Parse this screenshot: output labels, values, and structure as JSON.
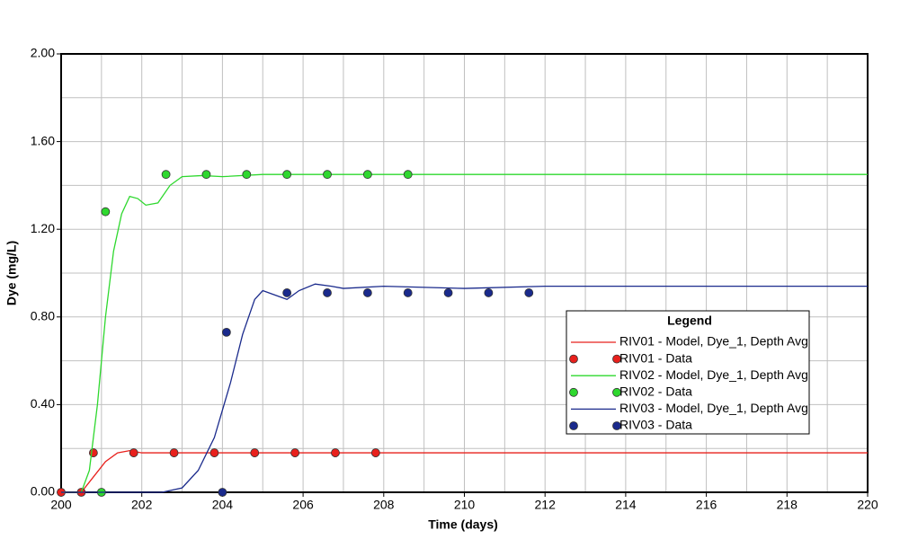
{
  "chart_data": {
    "type": "line",
    "xlabel": "Time (days)",
    "ylabel": "Dye (mg/L)",
    "legend_title": "Legend",
    "legend_loc": "center right",
    "xlim": [
      200,
      220
    ],
    "xticks": [
      200,
      202,
      204,
      206,
      208,
      210,
      212,
      214,
      216,
      218,
      220
    ],
    "x_minor_grid": [
      201,
      203,
      205,
      207,
      209,
      211,
      213,
      215,
      217,
      219
    ],
    "ylim": [
      0,
      2
    ],
    "yticks": [
      {
        "value": 0,
        "label": "0.00"
      },
      {
        "value": 0.4,
        "label": "0.40"
      },
      {
        "value": 0.8,
        "label": "0.80"
      },
      {
        "value": 1.2,
        "label": "1.20"
      },
      {
        "value": 1.6,
        "label": "1.60"
      },
      {
        "value": 2,
        "label": "2.00"
      }
    ],
    "y_minor_grid": [
      0.2,
      0.6,
      1.0,
      1.4,
      1.8
    ],
    "grid": true,
    "series": [
      {
        "name": "RIV01 - Model, Dye_1, Depth Avg",
        "kind": "line",
        "color": "#e8201c",
        "x": [
          200,
          200.5,
          200.8,
          201.1,
          201.4,
          201.7,
          202.0,
          203.0,
          220
        ],
        "values": [
          0,
          0,
          0.07,
          0.14,
          0.18,
          0.19,
          0.18,
          0.18,
          0.18
        ]
      },
      {
        "name": "RIV01 - Data",
        "kind": "marker",
        "color": "#e8201c",
        "x": [
          200.0,
          200.5,
          200.8,
          201.8,
          202.8,
          203.8,
          204.8,
          205.8,
          206.8,
          207.8
        ],
        "values": [
          0,
          0,
          0.18,
          0.18,
          0.18,
          0.18,
          0.18,
          0.18,
          0.18,
          0.18
        ]
      },
      {
        "name": "RIV02 - Model, Dye_1, Depth Avg",
        "kind": "line",
        "color": "#2ed82e",
        "x": [
          200,
          200.5,
          200.7,
          200.9,
          201.1,
          201.3,
          201.5,
          201.7,
          201.9,
          202.1,
          202.4,
          202.7,
          203.0,
          203.5,
          204,
          205,
          220
        ],
        "values": [
          0,
          0,
          0.1,
          0.4,
          0.8,
          1.1,
          1.27,
          1.35,
          1.34,
          1.31,
          1.32,
          1.4,
          1.44,
          1.445,
          1.44,
          1.45,
          1.45
        ]
      },
      {
        "name": "RIV02 - Data",
        "kind": "marker",
        "color": "#2ed82e",
        "x": [
          201.0,
          201.1,
          202.6,
          203.6,
          204.6,
          205.6,
          206.6,
          207.6,
          208.6
        ],
        "values": [
          0,
          1.28,
          1.45,
          1.45,
          1.45,
          1.45,
          1.45,
          1.45,
          1.45
        ]
      },
      {
        "name": "RIV03 - Model, Dye_1, Depth Avg",
        "kind": "line",
        "color": "#1a2a8c",
        "x": [
          200,
          202.5,
          203.0,
          203.4,
          203.8,
          204.2,
          204.5,
          204.8,
          205.0,
          205.3,
          205.6,
          205.9,
          206.3,
          206.7,
          207,
          208,
          210,
          212,
          220
        ],
        "values": [
          0,
          0,
          0.02,
          0.1,
          0.25,
          0.5,
          0.72,
          0.88,
          0.92,
          0.9,
          0.88,
          0.92,
          0.95,
          0.94,
          0.93,
          0.94,
          0.93,
          0.94,
          0.94
        ]
      },
      {
        "name": "RIV03 - Data",
        "kind": "marker",
        "color": "#1a2a8c",
        "x": [
          204.0,
          204.1,
          205.6,
          206.6,
          207.6,
          208.6,
          209.6,
          210.6,
          211.6
        ],
        "values": [
          0,
          0.73,
          0.91,
          0.91,
          0.91,
          0.91,
          0.91,
          0.91,
          0.91
        ]
      }
    ]
  }
}
